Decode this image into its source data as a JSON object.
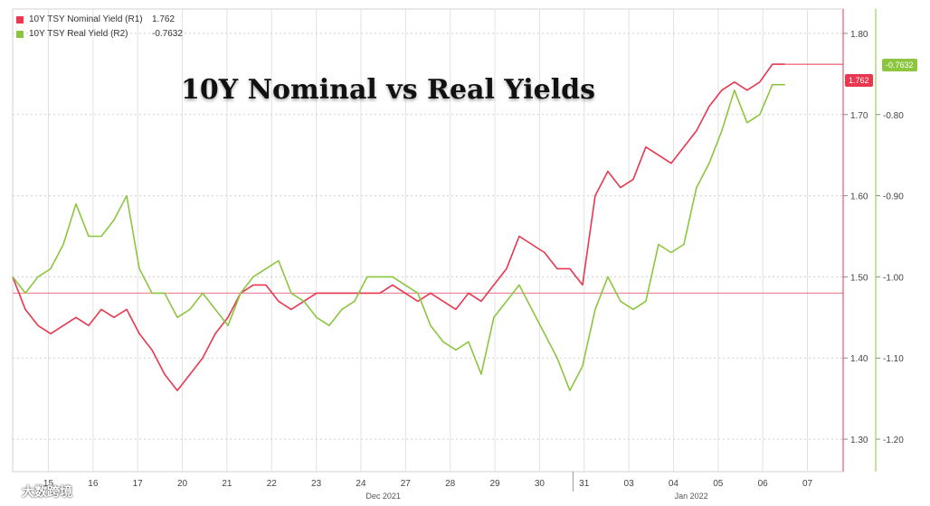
{
  "chart_data": {
    "type": "line",
    "title": "10Y Nominal vs Real Yields",
    "legend_position": "top-left",
    "grid": true,
    "series": [
      {
        "name": "10Y TSY Nominal Yield (R1)",
        "last_value": "1.762",
        "color": "#e8374f",
        "axis": "right_1",
        "values": [
          1.5,
          1.46,
          1.44,
          1.43,
          1.44,
          1.45,
          1.44,
          1.46,
          1.45,
          1.46,
          1.43,
          1.41,
          1.38,
          1.36,
          1.38,
          1.4,
          1.43,
          1.45,
          1.48,
          1.49,
          1.49,
          1.47,
          1.46,
          1.47,
          1.48,
          1.48,
          1.48,
          1.48,
          1.48,
          1.48,
          1.49,
          1.48,
          1.47,
          1.48,
          1.47,
          1.46,
          1.48,
          1.47,
          1.49,
          1.51,
          1.55,
          1.54,
          1.53,
          1.51,
          1.51,
          1.49,
          1.6,
          1.63,
          1.61,
          1.62,
          1.66,
          1.65,
          1.64,
          1.66,
          1.68,
          1.71,
          1.73,
          1.74,
          1.73,
          1.74,
          1.762,
          1.762
        ]
      },
      {
        "name": "10Y TSY Real Yield (R2)",
        "last_value": "-0.7632",
        "color": "#8cc63f",
        "axis": "right_2",
        "values": [
          -1.0,
          -1.02,
          -1.0,
          -0.99,
          -0.96,
          -0.91,
          -0.95,
          -0.95,
          -0.93,
          -0.9,
          -0.99,
          -1.02,
          -1.02,
          -1.05,
          -1.04,
          -1.02,
          -1.04,
          -1.06,
          -1.02,
          -1.0,
          -0.99,
          -0.98,
          -1.02,
          -1.03,
          -1.05,
          -1.06,
          -1.04,
          -1.03,
          -1.0,
          -1.0,
          -1.0,
          -1.01,
          -1.02,
          -1.06,
          -1.08,
          -1.09,
          -1.08,
          -1.12,
          -1.05,
          -1.03,
          -1.01,
          -1.04,
          -1.07,
          -1.1,
          -1.14,
          -1.11,
          -1.04,
          -1.0,
          -1.03,
          -1.04,
          -1.03,
          -0.96,
          -0.97,
          -0.96,
          -0.89,
          -0.86,
          -0.82,
          -0.77,
          -0.81,
          -0.8,
          -0.7632,
          -0.7632
        ]
      }
    ],
    "reference_line": 1.48,
    "axes": {
      "right_1": {
        "ticks": [
          "1.80",
          "1.70",
          "1.60",
          "1.50",
          "1.40",
          "1.30"
        ],
        "range": [
          1.26,
          1.83
        ]
      },
      "right_2": {
        "ticks": [
          "-0.80",
          "-0.90",
          "-1.00",
          "-1.10",
          "-1.20"
        ],
        "range": [
          -1.24,
          -0.67
        ]
      }
    },
    "x_ticks": [
      "15",
      "16",
      "17",
      "20",
      "21",
      "22",
      "23",
      "24",
      "27",
      "28",
      "29",
      "30",
      "31",
      "03",
      "04",
      "05",
      "06",
      "07"
    ],
    "x_group_labels": [
      "Dec 2021",
      "Jan 2022"
    ],
    "value_tags": {
      "nominal": "1.762",
      "real": "-0.7632"
    }
  },
  "watermark": "大数跨境"
}
